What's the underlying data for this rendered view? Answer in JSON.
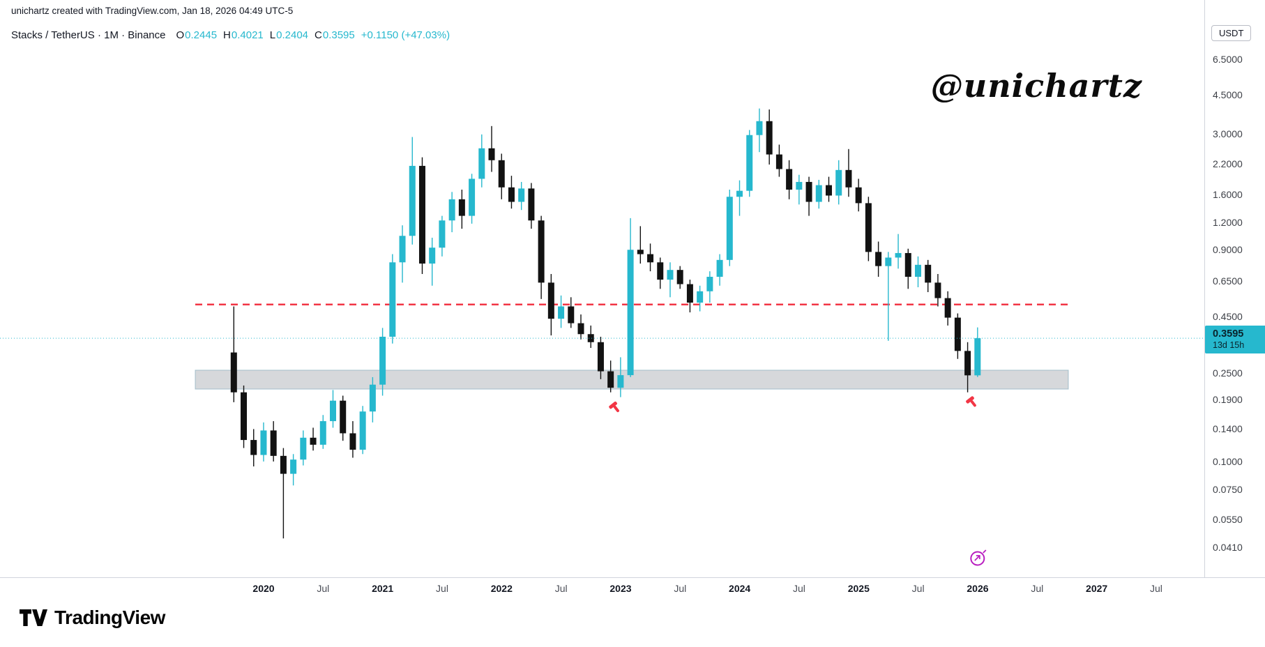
{
  "attribution": "unichartz created with TradingView.com, Jan 18, 2026 04:49 UTC-5",
  "watermark": "@unichartz",
  "legend": {
    "title": "Stacks / TetherUS · 1M · Binance",
    "symbol": "Stacks / TetherUS",
    "interval": "1M",
    "exchange": "Binance",
    "ohlc": {
      "o_label": "O",
      "o": "0.2445",
      "h_label": "H",
      "h": "0.4021",
      "l_label": "L",
      "l": "0.2404",
      "c_label": "C",
      "c": "0.3595",
      "change": "+0.1150 (+47.03%)"
    }
  },
  "price_axis": {
    "currency_button": "USDT",
    "ticks": [
      "6.5000",
      "4.5000",
      "3.0000",
      "2.2000",
      "1.6000",
      "1.2000",
      "0.9000",
      "0.6500",
      "0.4500",
      "0.2500",
      "0.1900",
      "0.1400",
      "0.1000",
      "0.0750",
      "0.0550",
      "0.0410"
    ],
    "current_price_label": "0.3595",
    "countdown": "13d 15h"
  },
  "time_axis": {
    "ticks": [
      "2020",
      "Jul",
      "2021",
      "Jul",
      "2022",
      "Jul",
      "2023",
      "Jul",
      "2024",
      "Jul",
      "2025",
      "Jul",
      "2026",
      "Jul",
      "2027",
      "Jul"
    ]
  },
  "footer": {
    "brand": "TradingView"
  },
  "colors": {
    "up": "#26b8ce",
    "down": "#121212",
    "red": "#f23645",
    "purple": "#b91fc0",
    "band_fill": "rgba(165,168,176,0.45)",
    "band_stroke": "rgba(110,158,178,0.55)",
    "border": "#d1d4dc"
  },
  "chart_data": {
    "type": "candlestick",
    "title": "Stacks / TetherUS monthly chart",
    "symbol": "STX/USDT",
    "exchange": "Binance",
    "timeframe": "1M",
    "price_scale": "logarithmic",
    "quote_currency": "USDT",
    "start_month": "2019-10",
    "end_month": "2026-01",
    "visible_price_range": [
      0.041,
      6.5
    ],
    "columns": [
      "open",
      "high",
      "low",
      "close"
    ],
    "candles": [
      [
        0.31,
        0.5,
        0.185,
        0.205
      ],
      [
        0.205,
        0.22,
        0.115,
        0.125
      ],
      [
        0.125,
        0.14,
        0.095,
        0.107
      ],
      [
        0.107,
        0.15,
        0.1,
        0.138
      ],
      [
        0.138,
        0.152,
        0.1,
        0.106
      ],
      [
        0.106,
        0.115,
        0.045,
        0.088
      ],
      [
        0.088,
        0.108,
        0.078,
        0.102
      ],
      [
        0.102,
        0.138,
        0.096,
        0.128
      ],
      [
        0.128,
        0.142,
        0.112,
        0.119
      ],
      [
        0.119,
        0.162,
        0.114,
        0.152
      ],
      [
        0.152,
        0.21,
        0.142,
        0.188
      ],
      [
        0.188,
        0.198,
        0.124,
        0.134
      ],
      [
        0.134,
        0.152,
        0.104,
        0.113
      ],
      [
        0.113,
        0.178,
        0.108,
        0.168
      ],
      [
        0.168,
        0.24,
        0.15,
        0.222
      ],
      [
        0.222,
        0.4,
        0.198,
        0.365
      ],
      [
        0.365,
        0.86,
        0.34,
        0.79
      ],
      [
        0.79,
        1.16,
        0.64,
        1.04
      ],
      [
        1.04,
        2.9,
        0.95,
        2.15
      ],
      [
        2.15,
        2.35,
        0.7,
        0.78
      ],
      [
        0.78,
        1.02,
        0.62,
        0.92
      ],
      [
        0.92,
        1.28,
        0.84,
        1.22
      ],
      [
        1.22,
        1.64,
        1.08,
        1.52
      ],
      [
        1.52,
        1.68,
        1.12,
        1.28
      ],
      [
        1.28,
        1.98,
        1.18,
        1.88
      ],
      [
        1.88,
        2.98,
        1.72,
        2.58
      ],
      [
        2.58,
        3.25,
        2.02,
        2.28
      ],
      [
        2.28,
        2.44,
        1.52,
        1.72
      ],
      [
        1.72,
        1.94,
        1.38,
        1.48
      ],
      [
        1.48,
        1.82,
        1.36,
        1.7
      ],
      [
        1.7,
        1.8,
        1.12,
        1.22
      ],
      [
        1.22,
        1.28,
        0.54,
        0.64
      ],
      [
        0.64,
        0.7,
        0.37,
        0.44
      ],
      [
        0.44,
        0.56,
        0.4,
        0.5
      ],
      [
        0.5,
        0.55,
        0.4,
        0.42
      ],
      [
        0.42,
        0.46,
        0.355,
        0.375
      ],
      [
        0.375,
        0.41,
        0.325,
        0.345
      ],
      [
        0.345,
        0.365,
        0.235,
        0.255
      ],
      [
        0.255,
        0.285,
        0.205,
        0.215
      ],
      [
        0.215,
        0.295,
        0.195,
        0.245
      ],
      [
        0.245,
        1.25,
        0.24,
        0.9
      ],
      [
        0.9,
        1.15,
        0.78,
        0.86
      ],
      [
        0.86,
        0.96,
        0.72,
        0.79
      ],
      [
        0.79,
        0.83,
        0.6,
        0.66
      ],
      [
        0.66,
        0.79,
        0.55,
        0.73
      ],
      [
        0.73,
        0.76,
        0.6,
        0.63
      ],
      [
        0.63,
        0.66,
        0.47,
        0.52
      ],
      [
        0.52,
        0.62,
        0.475,
        0.585
      ],
      [
        0.585,
        0.72,
        0.52,
        0.68
      ],
      [
        0.68,
        0.86,
        0.62,
        0.81
      ],
      [
        0.81,
        1.68,
        0.76,
        1.56
      ],
      [
        1.56,
        1.85,
        1.28,
        1.66
      ],
      [
        1.66,
        3.12,
        1.56,
        2.96
      ],
      [
        2.96,
        3.9,
        2.48,
        3.42
      ],
      [
        3.42,
        3.86,
        2.18,
        2.42
      ],
      [
        2.42,
        2.68,
        1.92,
        2.08
      ],
      [
        2.08,
        2.28,
        1.52,
        1.68
      ],
      [
        1.68,
        1.96,
        1.44,
        1.82
      ],
      [
        1.82,
        1.92,
        1.28,
        1.48
      ],
      [
        1.48,
        1.86,
        1.38,
        1.76
      ],
      [
        1.76,
        1.92,
        1.48,
        1.58
      ],
      [
        1.58,
        2.28,
        1.44,
        2.06
      ],
      [
        2.06,
        2.56,
        1.56,
        1.72
      ],
      [
        1.72,
        1.88,
        1.34,
        1.46
      ],
      [
        1.46,
        1.56,
        0.8,
        0.88
      ],
      [
        0.88,
        0.98,
        0.68,
        0.76
      ],
      [
        0.76,
        0.88,
        0.35,
        0.83
      ],
      [
        0.83,
        1.06,
        0.74,
        0.87
      ],
      [
        0.87,
        0.91,
        0.6,
        0.68
      ],
      [
        0.68,
        0.84,
        0.61,
        0.77
      ],
      [
        0.77,
        0.81,
        0.58,
        0.64
      ],
      [
        0.64,
        0.7,
        0.5,
        0.545
      ],
      [
        0.545,
        0.585,
        0.41,
        0.445
      ],
      [
        0.445,
        0.465,
        0.29,
        0.315
      ],
      [
        0.315,
        0.345,
        0.205,
        0.2445
      ],
      [
        0.2445,
        0.4021,
        0.2404,
        0.3595
      ]
    ],
    "last_candle": {
      "open": 0.2445,
      "high": 0.4021,
      "low": 0.2404,
      "close": 0.3595,
      "change": "+0.1150",
      "change_pct": "+47.03%"
    },
    "overlays": {
      "resistance_dashed_line": {
        "price": 0.51,
        "style": "dashed",
        "color": "red"
      },
      "support_zone": {
        "price_top": 0.258,
        "price_bottom": 0.212
      },
      "current_price_line": {
        "price": 0.3595,
        "style": "dotted"
      }
    },
    "markers": [
      {
        "type": "gavel",
        "month": "2022-12",
        "price": 0.175
      },
      {
        "type": "gavel",
        "month": "2025-12",
        "price": 0.185
      },
      {
        "type": "cycle-event",
        "month": "2026-01"
      }
    ],
    "legend_position": "top-left",
    "grid": false
  }
}
